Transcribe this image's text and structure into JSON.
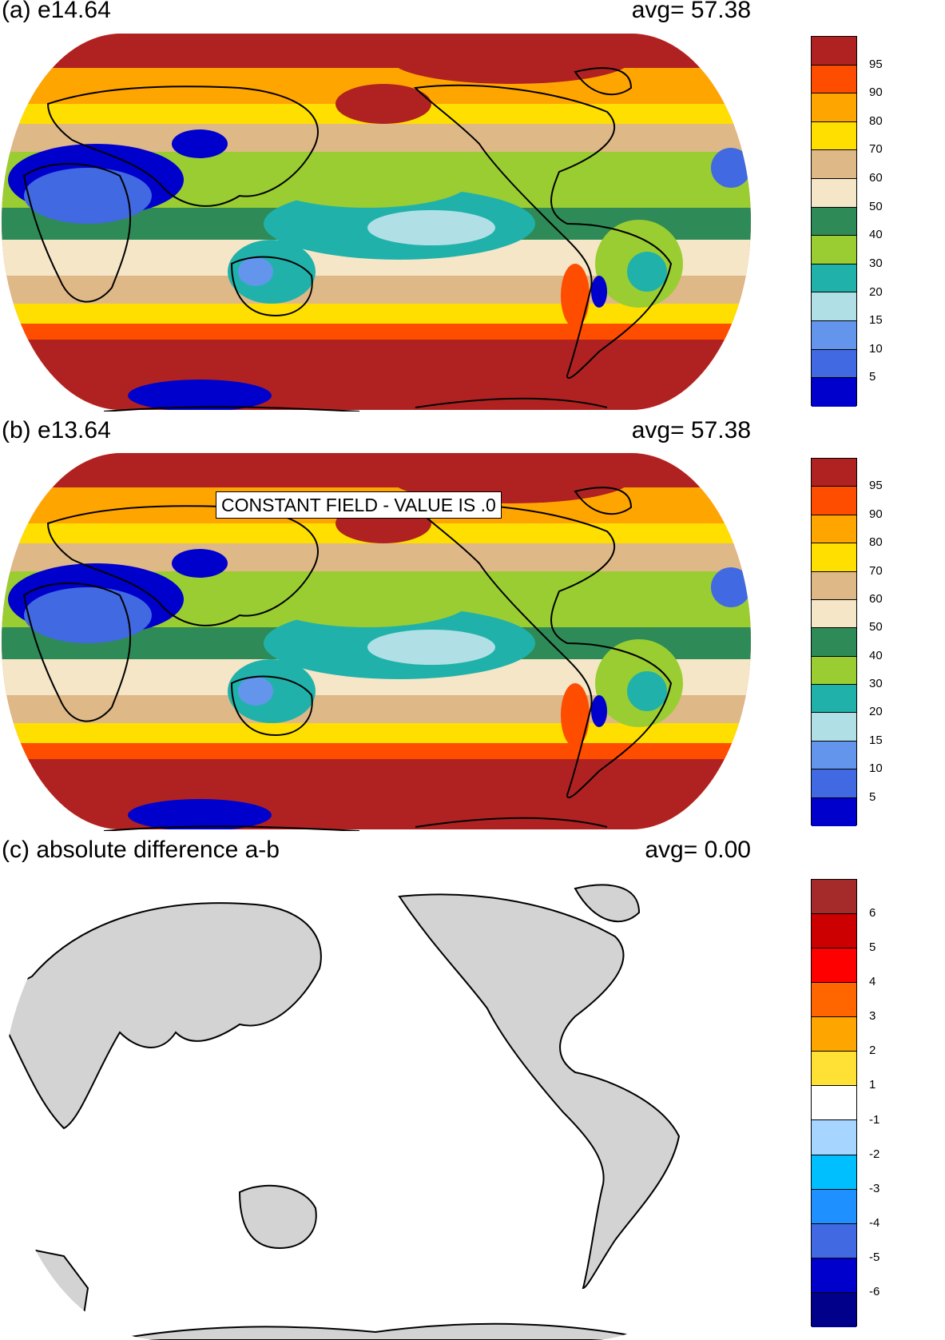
{
  "panels": [
    {
      "id": "a",
      "title": "(a) e14.64",
      "avg": "avg=   57.38"
    },
    {
      "id": "b",
      "title": "(b) e13.64",
      "avg": "avg=   57.38"
    },
    {
      "id": "c",
      "title": "(c) absolute difference a-b",
      "avg": "avg=    0.00"
    }
  ],
  "colorbar_ab": {
    "labels": [
      "95",
      "90",
      "80",
      "70",
      "60",
      "50",
      "40",
      "30",
      "20",
      "15",
      "10",
      "5"
    ],
    "colors": [
      "#b02222",
      "#ff4d00",
      "#ffa500",
      "#ffdf00",
      "#deb887",
      "#f5e6c8",
      "#2e8b57",
      "#9acd32",
      "#20b2aa",
      "#b0e0e6",
      "#6495ed",
      "#4169e1",
      "#0000cd"
    ]
  },
  "colorbar_c": {
    "labels": [
      "6",
      "5",
      "4",
      "3",
      "2",
      "1",
      "-1",
      "-2",
      "-3",
      "-4",
      "-5",
      "-6"
    ],
    "colors": [
      "#a52a2a",
      "#cc0000",
      "#ff0000",
      "#ff6600",
      "#ffa500",
      "#ffe135",
      "#ffffff",
      "#a6d5ff",
      "#00bfff",
      "#1e90ff",
      "#4169e1",
      "#0000cd",
      "#00008b"
    ]
  },
  "constant_field_label": "CONSTANT FIELD - VALUE IS .0",
  "map_colors": {
    "ocean_c": "#ffffff",
    "land_c": "#d3d3d3",
    "coast": "#000000"
  }
}
